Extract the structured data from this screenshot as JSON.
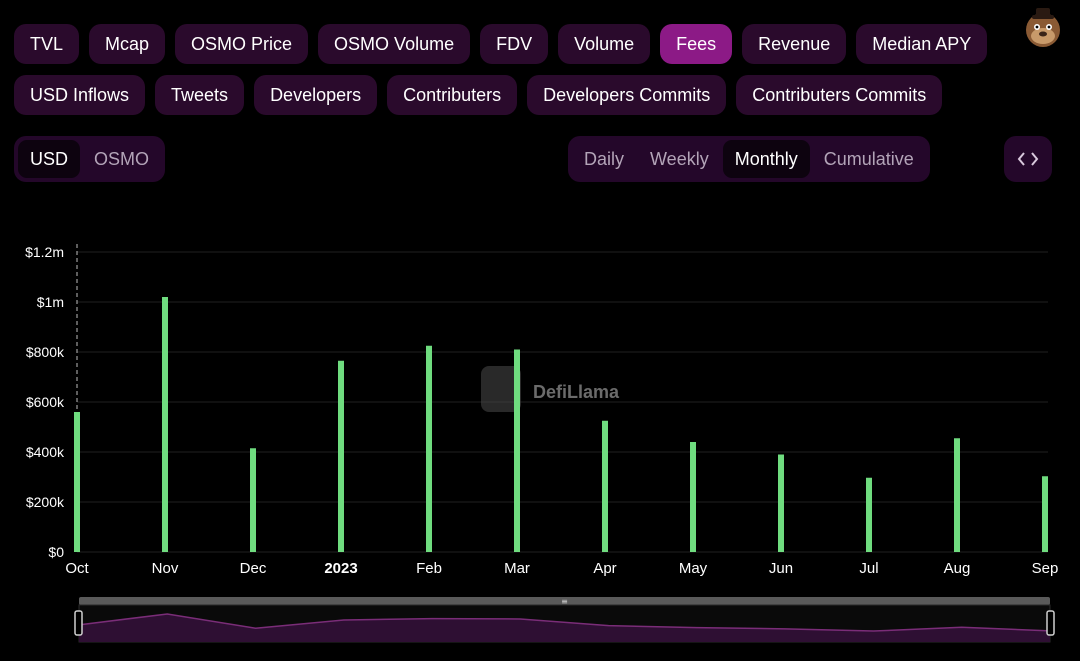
{
  "metric_tabs": {
    "row1": [
      {
        "label": "TVL",
        "active": false
      },
      {
        "label": "Mcap",
        "active": false
      },
      {
        "label": "OSMO Price",
        "active": false
      },
      {
        "label": "OSMO Volume",
        "active": false
      },
      {
        "label": "FDV",
        "active": false
      },
      {
        "label": "Volume",
        "active": false
      },
      {
        "label": "Fees",
        "active": true
      },
      {
        "label": "Revenue",
        "active": false
      },
      {
        "label": "Median APY",
        "active": false
      }
    ],
    "row2": [
      {
        "label": "USD Inflows",
        "active": false
      },
      {
        "label": "Tweets",
        "active": false
      },
      {
        "label": "Developers",
        "active": false
      },
      {
        "label": "Contributers",
        "active": false
      },
      {
        "label": "Developers Commits",
        "active": false
      },
      {
        "label": "Contributers Commits",
        "active": false
      }
    ]
  },
  "denomination": {
    "options": [
      {
        "label": "USD",
        "active": true
      },
      {
        "label": "OSMO",
        "active": false
      }
    ]
  },
  "period": {
    "options": [
      {
        "label": "Daily",
        "active": false
      },
      {
        "label": "Weekly",
        "active": false
      },
      {
        "label": "Monthly",
        "active": true
      },
      {
        "label": "Cumulative",
        "active": false
      }
    ]
  },
  "embed_button": {
    "icon": "code-brackets-icon",
    "label": "<>"
  },
  "watermark": {
    "text": "DefiLlama"
  },
  "colors": {
    "bar": "#6fdc7f",
    "active_tab": "#8c1a86",
    "pill": "#2a0a2c",
    "brush_fill": "#2e0f33",
    "brush_line": "#7a2d78"
  },
  "chart_data": {
    "type": "bar",
    "categories": [
      "Oct",
      "Nov",
      "Dec",
      "2023",
      "Feb",
      "Mar",
      "Apr",
      "May",
      "Jun",
      "Jul",
      "Aug",
      "Sep"
    ],
    "values": [
      560000,
      1020000,
      415000,
      765000,
      825000,
      810000,
      525000,
      440000,
      390000,
      297000,
      455000,
      303000
    ],
    "y_ticks": [
      {
        "value": 0,
        "label": "$0"
      },
      {
        "value": 200000,
        "label": "$200k"
      },
      {
        "value": 400000,
        "label": "$400k"
      },
      {
        "value": 600000,
        "label": "$600k"
      },
      {
        "value": 800000,
        "label": "$800k"
      },
      {
        "value": 1000000,
        "label": "$1m"
      },
      {
        "value": 1200000,
        "label": "$1.2m"
      }
    ],
    "ylim": [
      0,
      1200000
    ],
    "bold_categories": [
      "2023"
    ],
    "grid": true,
    "brush": {
      "handle_label": "≡",
      "range": [
        0,
        1
      ]
    }
  }
}
